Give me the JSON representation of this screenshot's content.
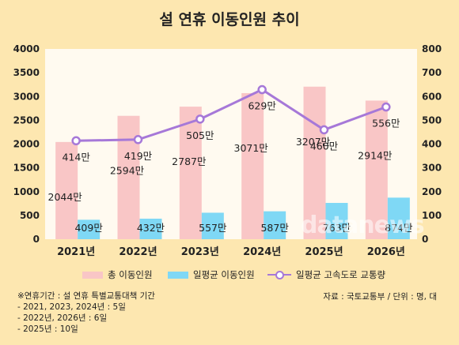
{
  "title": "설 연휴 이동인원 추이",
  "chart_data": {
    "type": "bar",
    "categories": [
      "2021년",
      "2022년",
      "2023년",
      "2024년",
      "2025년",
      "2026년"
    ],
    "left_axis": {
      "min": 0,
      "max": 4000,
      "ticks": [
        0,
        500,
        1000,
        1500,
        2000,
        2500,
        3000,
        3500,
        4000
      ]
    },
    "right_axis": {
      "min": 0,
      "max": 800,
      "ticks": [
        0,
        100,
        200,
        300,
        400,
        500,
        600,
        700,
        800
      ]
    },
    "series": [
      {
        "name": "총 이동인원",
        "type": "bar",
        "axis": "left",
        "color": "#f9c6c6",
        "values": [
          2044,
          2594,
          2787,
          3071,
          3207,
          2914
        ],
        "labels": [
          "2044만",
          "2594만",
          "2787만",
          "3071만",
          "3207만",
          "2914만"
        ]
      },
      {
        "name": "일평균 이동인원",
        "type": "bar",
        "axis": "left",
        "color": "#7fd8f5",
        "values": [
          409,
          432,
          557,
          587,
          763,
          874
        ],
        "labels": [
          "409만",
          "432만",
          "557만",
          "587만",
          "763만",
          "874만"
        ]
      },
      {
        "name": "일평균 고속도로 교통량",
        "type": "line",
        "axis": "right",
        "color": "#a678d8",
        "values": [
          414,
          419,
          505,
          629,
          460,
          556
        ],
        "labels": [
          "414만",
          "419만",
          "505만",
          "629만",
          "460만",
          "556만"
        ]
      }
    ],
    "legend_position": "bottom",
    "grid": false
  },
  "notes": [
    "※연휴기간 : 설 연휴 특별교통대책 기간",
    "- 2021, 2023, 2024년 : 5일",
    "- 2022년, 2026년 : 6일",
    "- 2025년 : 10일"
  ],
  "source": "자료 : 국토교통부 / 단위 : 명, 대",
  "watermark": "datanews"
}
